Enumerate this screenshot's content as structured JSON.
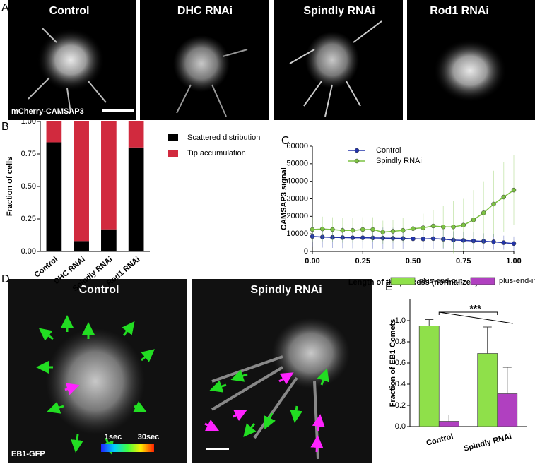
{
  "panels": {
    "letters": [
      "A",
      "B",
      "C",
      "D",
      "E"
    ],
    "a_images": [
      "Control",
      "DHC RNAi",
      "Spindly RNAi",
      "Rod1 RNAi"
    ],
    "a_marker": "mCherry-CAMSAP3",
    "d_images": [
      "Control",
      "Spindly RNAi"
    ],
    "d_marker": "EB1-GFP",
    "colorbar": [
      "1sec",
      "30sec"
    ]
  },
  "chart_data": [
    {
      "type": "stacked_bar",
      "ylabel": "Fraction of cells",
      "categories": [
        "Control",
        "DHC RNAi",
        "Spindly RNAi",
        "Rod1 RNAi"
      ],
      "series": [
        {
          "name": "Scattered distribution",
          "color": "#000000",
          "values": [
            0.84,
            0.08,
            0.17,
            0.8
          ]
        },
        {
          "name": "Tip accumulation",
          "color": "#d12a3e",
          "values": [
            0.16,
            0.92,
            0.83,
            0.2
          ]
        }
      ],
      "ylim": [
        0,
        1
      ],
      "yticks": [
        {
          "value": 0,
          "label": "0.00"
        },
        {
          "value": 0.25,
          "label": "0.25"
        },
        {
          "value": 0.5,
          "label": "0.50"
        },
        {
          "value": 0.75,
          "label": "0.75"
        },
        {
          "value": 1,
          "label": "1.00"
        }
      ]
    },
    {
      "type": "line",
      "xlabel": "Length of the process (normalized)",
      "ylabel": "CAMSAP3 signal",
      "x": [
        0,
        0.05,
        0.1,
        0.15,
        0.2,
        0.25,
        0.3,
        0.35,
        0.4,
        0.45,
        0.5,
        0.55,
        0.6,
        0.65,
        0.7,
        0.75,
        0.8,
        0.85,
        0.9,
        0.95,
        1
      ],
      "series": [
        {
          "name": "Control",
          "color": "#2233aa",
          "values": [
            8500,
            8200,
            8000,
            7900,
            7800,
            7800,
            7700,
            7600,
            7500,
            7400,
            7200,
            7100,
            7300,
            7000,
            6500,
            6300,
            6000,
            5800,
            5500,
            5000,
            4500
          ],
          "errors": [
            6000,
            6000,
            6000,
            6000,
            6000,
            6000,
            6000,
            6000,
            6000,
            6000,
            6000,
            6000,
            6000,
            5500,
            5000,
            5000,
            5000,
            4500,
            4500,
            4000,
            4000
          ]
        },
        {
          "name": "Spindly RNAi",
          "color": "#7cc242",
          "values": [
            12500,
            12800,
            12500,
            12000,
            12000,
            12500,
            12500,
            11000,
            11500,
            12000,
            13000,
            13500,
            14500,
            14000,
            14000,
            15000,
            18000,
            22000,
            27000,
            31000,
            35000
          ],
          "errors": [
            7000,
            7000,
            7000,
            7000,
            7000,
            7000,
            7000,
            6500,
            6500,
            7000,
            7500,
            8000,
            9000,
            12000,
            15000,
            15000,
            17000,
            18000,
            19000,
            20000,
            20000
          ]
        }
      ],
      "xlim": [
        0,
        1
      ],
      "xticks": [
        {
          "value": 0,
          "label": "0.00"
        },
        {
          "value": 0.25,
          "label": "0.25"
        },
        {
          "value": 0.5,
          "label": "0.50"
        },
        {
          "value": 0.75,
          "label": "0.75"
        },
        {
          "value": 1,
          "label": "1.00"
        }
      ],
      "ylim": [
        0,
        60000
      ],
      "yticks": [
        0,
        10000,
        20000,
        30000,
        40000,
        50000,
        60000
      ]
    },
    {
      "type": "bar",
      "ylabel": "Fraction of EB1 Comets",
      "annotation": "***",
      "categories": [
        "Control",
        "Spindly RNAi"
      ],
      "series": [
        {
          "name": "plus-end-out",
          "color": "#8fe04a",
          "values": [
            0.95,
            0.69
          ],
          "errors": [
            0.06,
            0.25
          ]
        },
        {
          "name": "plus-end-in",
          "color": "#b040c0",
          "values": [
            0.05,
            0.31
          ],
          "errors": [
            0.06,
            0.25
          ]
        }
      ],
      "ylim": [
        0,
        1.2
      ],
      "yticks": [
        {
          "value": 0,
          "label": "0.0"
        },
        {
          "value": 0.2,
          "label": "0.2"
        },
        {
          "value": 0.4,
          "label": "0.4"
        },
        {
          "value": 0.6,
          "label": "0.6"
        },
        {
          "value": 0.8,
          "label": "0.8"
        },
        {
          "value": 1,
          "label": "1.0"
        }
      ]
    }
  ]
}
